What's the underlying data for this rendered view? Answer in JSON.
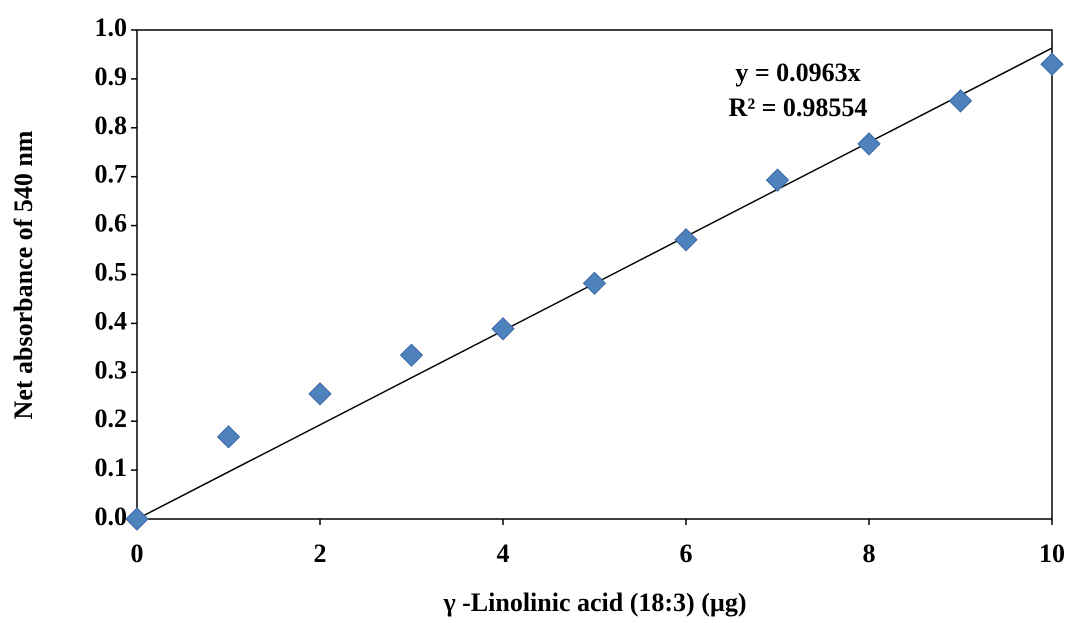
{
  "chart_data": {
    "type": "scatter",
    "x_label": "γ -Linolinic acid (18:3) (µg)",
    "y_label": "Net absorbance of 540 nm",
    "series": [
      {
        "color": "#4f81bd",
        "x": [
          0,
          1,
          2,
          3,
          4,
          5,
          6,
          7,
          8,
          9,
          10
        ],
        "values": [
          0,
          0.168,
          0.256,
          0.335,
          0.389,
          0.482,
          0.571,
          0.693,
          0.767,
          0.855,
          0.93
        ]
      }
    ],
    "trendline": {
      "slope": 0.0963,
      "equation": "y = 0.0963x",
      "r_squared": "R² = 0.98554"
    },
    "xlim": [
      0,
      10
    ],
    "xticks": [
      0,
      2,
      4,
      6,
      8,
      10
    ],
    "ylim": [
      0,
      1
    ],
    "yticks": [
      {
        "value": 0,
        "label": "0.0"
      },
      0.1,
      0.2,
      0.3,
      0.4,
      0.5,
      0.6,
      0.7,
      0.8,
      0.9,
      {
        "value": 1,
        "label": "1.0"
      }
    ]
  }
}
